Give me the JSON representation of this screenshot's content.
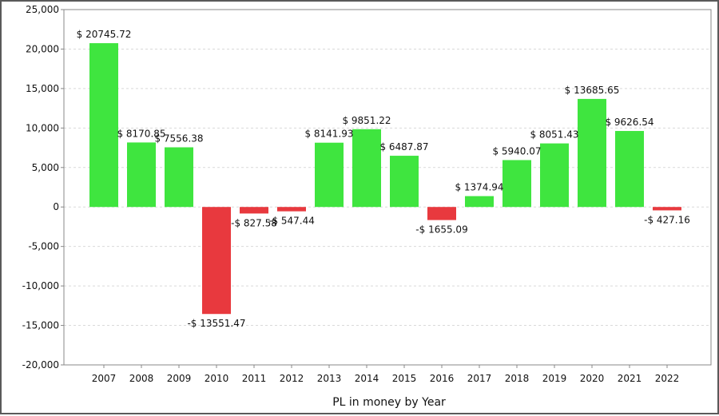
{
  "chart_data": {
    "type": "bar",
    "xlabel": "PL in money by Year",
    "ylabel": "",
    "title": "",
    "ylim": [
      -20000,
      25000
    ],
    "yticks": [
      25000,
      20000,
      15000,
      10000,
      5000,
      0,
      -5000,
      -10000,
      -15000,
      -20000
    ],
    "ytick_labels": [
      "25,000",
      "20,000",
      "15,000",
      "10,000",
      "5,000",
      "0",
      "-5,000",
      "-10,000",
      "-15,000",
      "-20,000"
    ],
    "grid": true,
    "categories": [
      "2007",
      "2008",
      "2009",
      "2010",
      "2011",
      "2012",
      "2013",
      "2014",
      "2015",
      "2016",
      "2017",
      "2018",
      "2019",
      "2020",
      "2021",
      "2022"
    ],
    "values": [
      20745.72,
      8170.85,
      7556.38,
      -13551.47,
      -827.58,
      -547.44,
      8141.93,
      9851.22,
      6487.87,
      -1655.09,
      1374.94,
      5940.07,
      8051.43,
      13685.65,
      9626.54,
      -427.16
    ],
    "data_labels": [
      "$ 20745.72",
      "$ 8170.85",
      "$ 7556.38",
      "-$ 13551.47",
      "-$ 827.58",
      "-$ 547.44",
      "$ 8141.93",
      "$ 9851.22",
      "$ 6487.87",
      "-$ 1655.09",
      "$ 1374.94",
      "$ 5940.07",
      "$ 8051.43",
      "$ 13685.65",
      "$ 9626.54",
      "-$ 427.16"
    ],
    "colors": {
      "positive": "#3fe53f",
      "negative": "#e8393e",
      "grid": "#d9d9d9",
      "axis": "#888888"
    }
  }
}
